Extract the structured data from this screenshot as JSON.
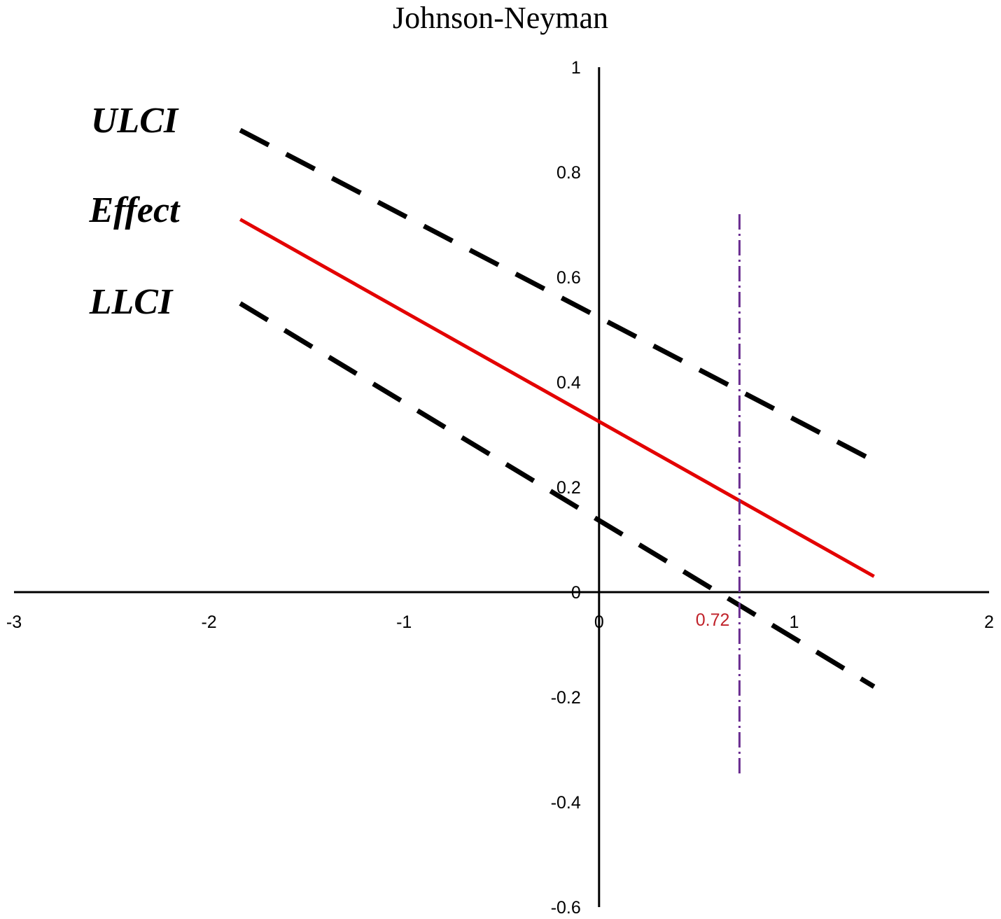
{
  "chart_data": {
    "type": "line",
    "title": "Johnson-Neyman",
    "xlabel": "",
    "ylabel": "",
    "xlim": [
      -3,
      2
    ],
    "ylim": [
      -0.6,
      1
    ],
    "x_ticks": [
      "-3",
      "-2",
      "-1",
      "0",
      "1",
      "2"
    ],
    "y_ticks": [
      "1",
      "0.8",
      "0.6",
      "0.4",
      "0.2",
      "0",
      "-0.2",
      "-0.4",
      "-0.6"
    ],
    "x_tick_values": [
      -3,
      -2,
      -1,
      0,
      1,
      2
    ],
    "y_tick_values": [
      1,
      0.8,
      0.6,
      0.4,
      0.2,
      0,
      -0.2,
      -0.4,
      -0.6
    ],
    "grid": false,
    "series": [
      {
        "name": "ULCI",
        "style": "dashed",
        "color": "#000000",
        "x": [
          -1.84,
          1.41
        ],
        "y": [
          0.88,
          0.25
        ]
      },
      {
        "name": "Effect",
        "style": "solid",
        "color": "#e30000",
        "x": [
          -1.84,
          1.41
        ],
        "y": [
          0.71,
          0.03
        ]
      },
      {
        "name": "LLCI",
        "style": "dashed",
        "color": "#000000",
        "x": [
          -1.84,
          1.41
        ],
        "y": [
          0.55,
          -0.18
        ]
      }
    ],
    "johnson_neyman": {
      "value": 0.72,
      "label": "0.72",
      "line_color": "#6a2d91",
      "label_color": "#c0222a",
      "y_range": [
        -0.35,
        0.72
      ]
    }
  }
}
